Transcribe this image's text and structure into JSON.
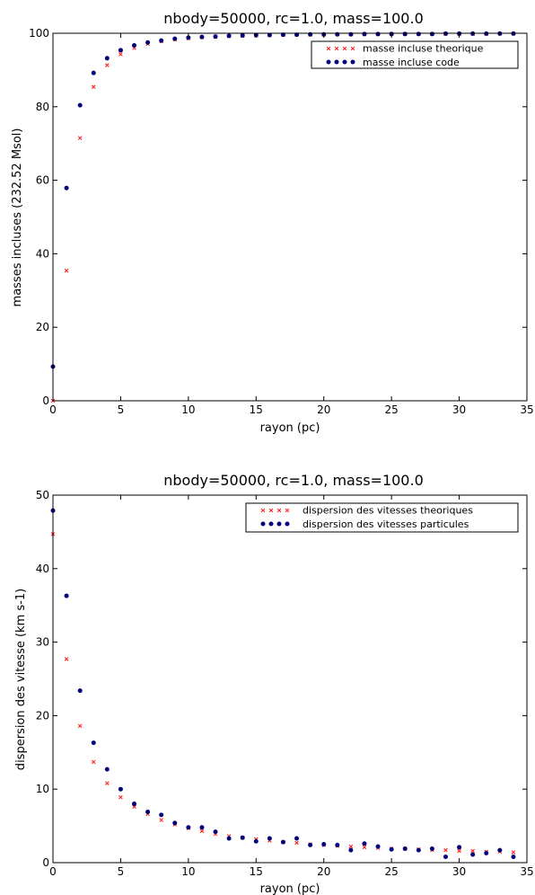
{
  "chart_data": [
    {
      "type": "scatter",
      "title": "nbody=50000, rc=1.0, mass=100.0",
      "xlabel": "rayon (pc)",
      "ylabel": "masses incluses (232.52 Msol)",
      "xlim": [
        0,
        35
      ],
      "ylim": [
        0,
        100
      ],
      "xticks": [
        "0",
        "5",
        "10",
        "15",
        "20",
        "25",
        "30",
        "35"
      ],
      "yticks": [
        "0",
        "20",
        "40",
        "60",
        "80",
        "100"
      ],
      "grid": false,
      "legend_position": "top-right",
      "x": [
        0,
        1,
        2,
        3,
        4,
        5,
        6,
        7,
        8,
        9,
        10,
        11,
        12,
        13,
        14,
        15,
        16,
        17,
        18,
        19,
        20,
        21,
        22,
        23,
        24,
        25,
        26,
        27,
        28,
        29,
        30,
        31,
        32,
        33,
        34
      ],
      "series": [
        {
          "name": "masse incluse theorique",
          "marker": "x",
          "color": "#ff2020",
          "values": [
            0,
            35.4,
            71.5,
            85.4,
            91.3,
            94.3,
            96.0,
            97.1,
            97.8,
            98.3,
            98.6,
            98.9,
            99.0,
            99.2,
            99.3,
            99.4,
            99.5,
            99.5,
            99.6,
            99.6,
            99.6,
            99.7,
            99.7,
            99.7,
            99.7,
            99.8,
            99.8,
            99.8,
            99.8,
            99.8,
            99.8,
            99.8,
            99.8,
            99.9,
            99.9
          ]
        },
        {
          "name": "masse incluse code",
          "marker": "dot",
          "color": "#00007a",
          "values": [
            9.3,
            57.9,
            80.4,
            89.2,
            93.2,
            95.4,
            96.7,
            97.5,
            98.0,
            98.5,
            98.8,
            99.0,
            99.1,
            99.3,
            99.4,
            99.5,
            99.5,
            99.6,
            99.6,
            99.7,
            99.7,
            99.7,
            99.7,
            99.8,
            99.8,
            99.8,
            99.8,
            99.8,
            99.8,
            99.9,
            99.9,
            99.9,
            99.9,
            99.9,
            99.9
          ]
        }
      ]
    },
    {
      "type": "scatter",
      "title": "nbody=50000, rc=1.0, mass=100.0",
      "xlabel": "rayon (pc)",
      "ylabel": "dispersion des vitesse (km s-1)",
      "xlim": [
        0,
        35
      ],
      "ylim": [
        0,
        50
      ],
      "xticks": [
        "0",
        "5",
        "10",
        "15",
        "20",
        "25",
        "30",
        "35"
      ],
      "yticks": [
        "0",
        "10",
        "20",
        "30",
        "40",
        "50"
      ],
      "grid": false,
      "legend_position": "top-right",
      "x": [
        0,
        1,
        2,
        3,
        4,
        5,
        6,
        7,
        8,
        9,
        10,
        11,
        12,
        13,
        14,
        15,
        16,
        17,
        18,
        19,
        20,
        21,
        22,
        23,
        24,
        25,
        26,
        27,
        28,
        29,
        30,
        31,
        32,
        33,
        34
      ],
      "series": [
        {
          "name": "dispersion des vitesses theoriques",
          "marker": "x",
          "color": "#ff2020",
          "values": [
            44.7,
            27.7,
            18.6,
            13.7,
            10.8,
            8.9,
            7.6,
            6.6,
            5.8,
            5.2,
            4.7,
            4.3,
            3.9,
            3.6,
            3.4,
            3.2,
            3.0,
            2.8,
            2.7,
            2.5,
            2.4,
            2.3,
            2.2,
            2.1,
            2.0,
            1.9,
            1.9,
            1.8,
            1.7,
            1.7,
            1.6,
            1.6,
            1.5,
            1.5,
            1.4
          ]
        },
        {
          "name": "dispersion des vitesses particules",
          "marker": "dot",
          "color": "#00007a",
          "values": [
            47.9,
            36.3,
            23.4,
            16.3,
            12.7,
            10.0,
            8.0,
            6.9,
            6.5,
            5.4,
            4.8,
            4.8,
            4.2,
            3.3,
            3.4,
            2.9,
            3.3,
            2.8,
            3.3,
            2.4,
            2.5,
            2.4,
            1.7,
            2.6,
            2.2,
            1.8,
            1.9,
            1.7,
            1.9,
            0.8,
            2.1,
            1.1,
            1.3,
            1.7,
            0.8
          ]
        }
      ]
    }
  ]
}
